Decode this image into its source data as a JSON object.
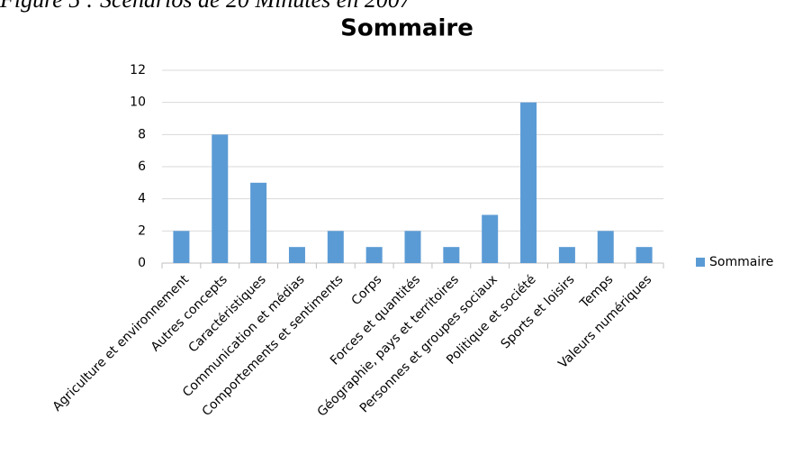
{
  "caption": "Figure 5 : Scénarios de 20 Minutes en 2007",
  "chart_data": {
    "type": "bar",
    "title": "Sommaire",
    "categories": [
      "Agriculture et environnement",
      "Autres concepts",
      "Caractéristiques",
      "Communication et médias",
      "Comportements et sentiments",
      "Corps",
      "Forces et quantités",
      "Géographie, pays et territoires",
      "Personnes et groupes sociaux",
      "Politique et société",
      "Sports et loisirs",
      "Temps",
      "Valeurs numériques"
    ],
    "series": [
      {
        "name": "Sommaire",
        "color": "#5b9bd5",
        "values": [
          2,
          8,
          5,
          1,
          2,
          1,
          2,
          1,
          3,
          10,
          1,
          2,
          1
        ]
      }
    ],
    "ylim": [
      0,
      12
    ],
    "yticks": [
      0,
      2,
      4,
      6,
      8,
      10,
      12
    ],
    "grid": true,
    "legend": "right"
  }
}
